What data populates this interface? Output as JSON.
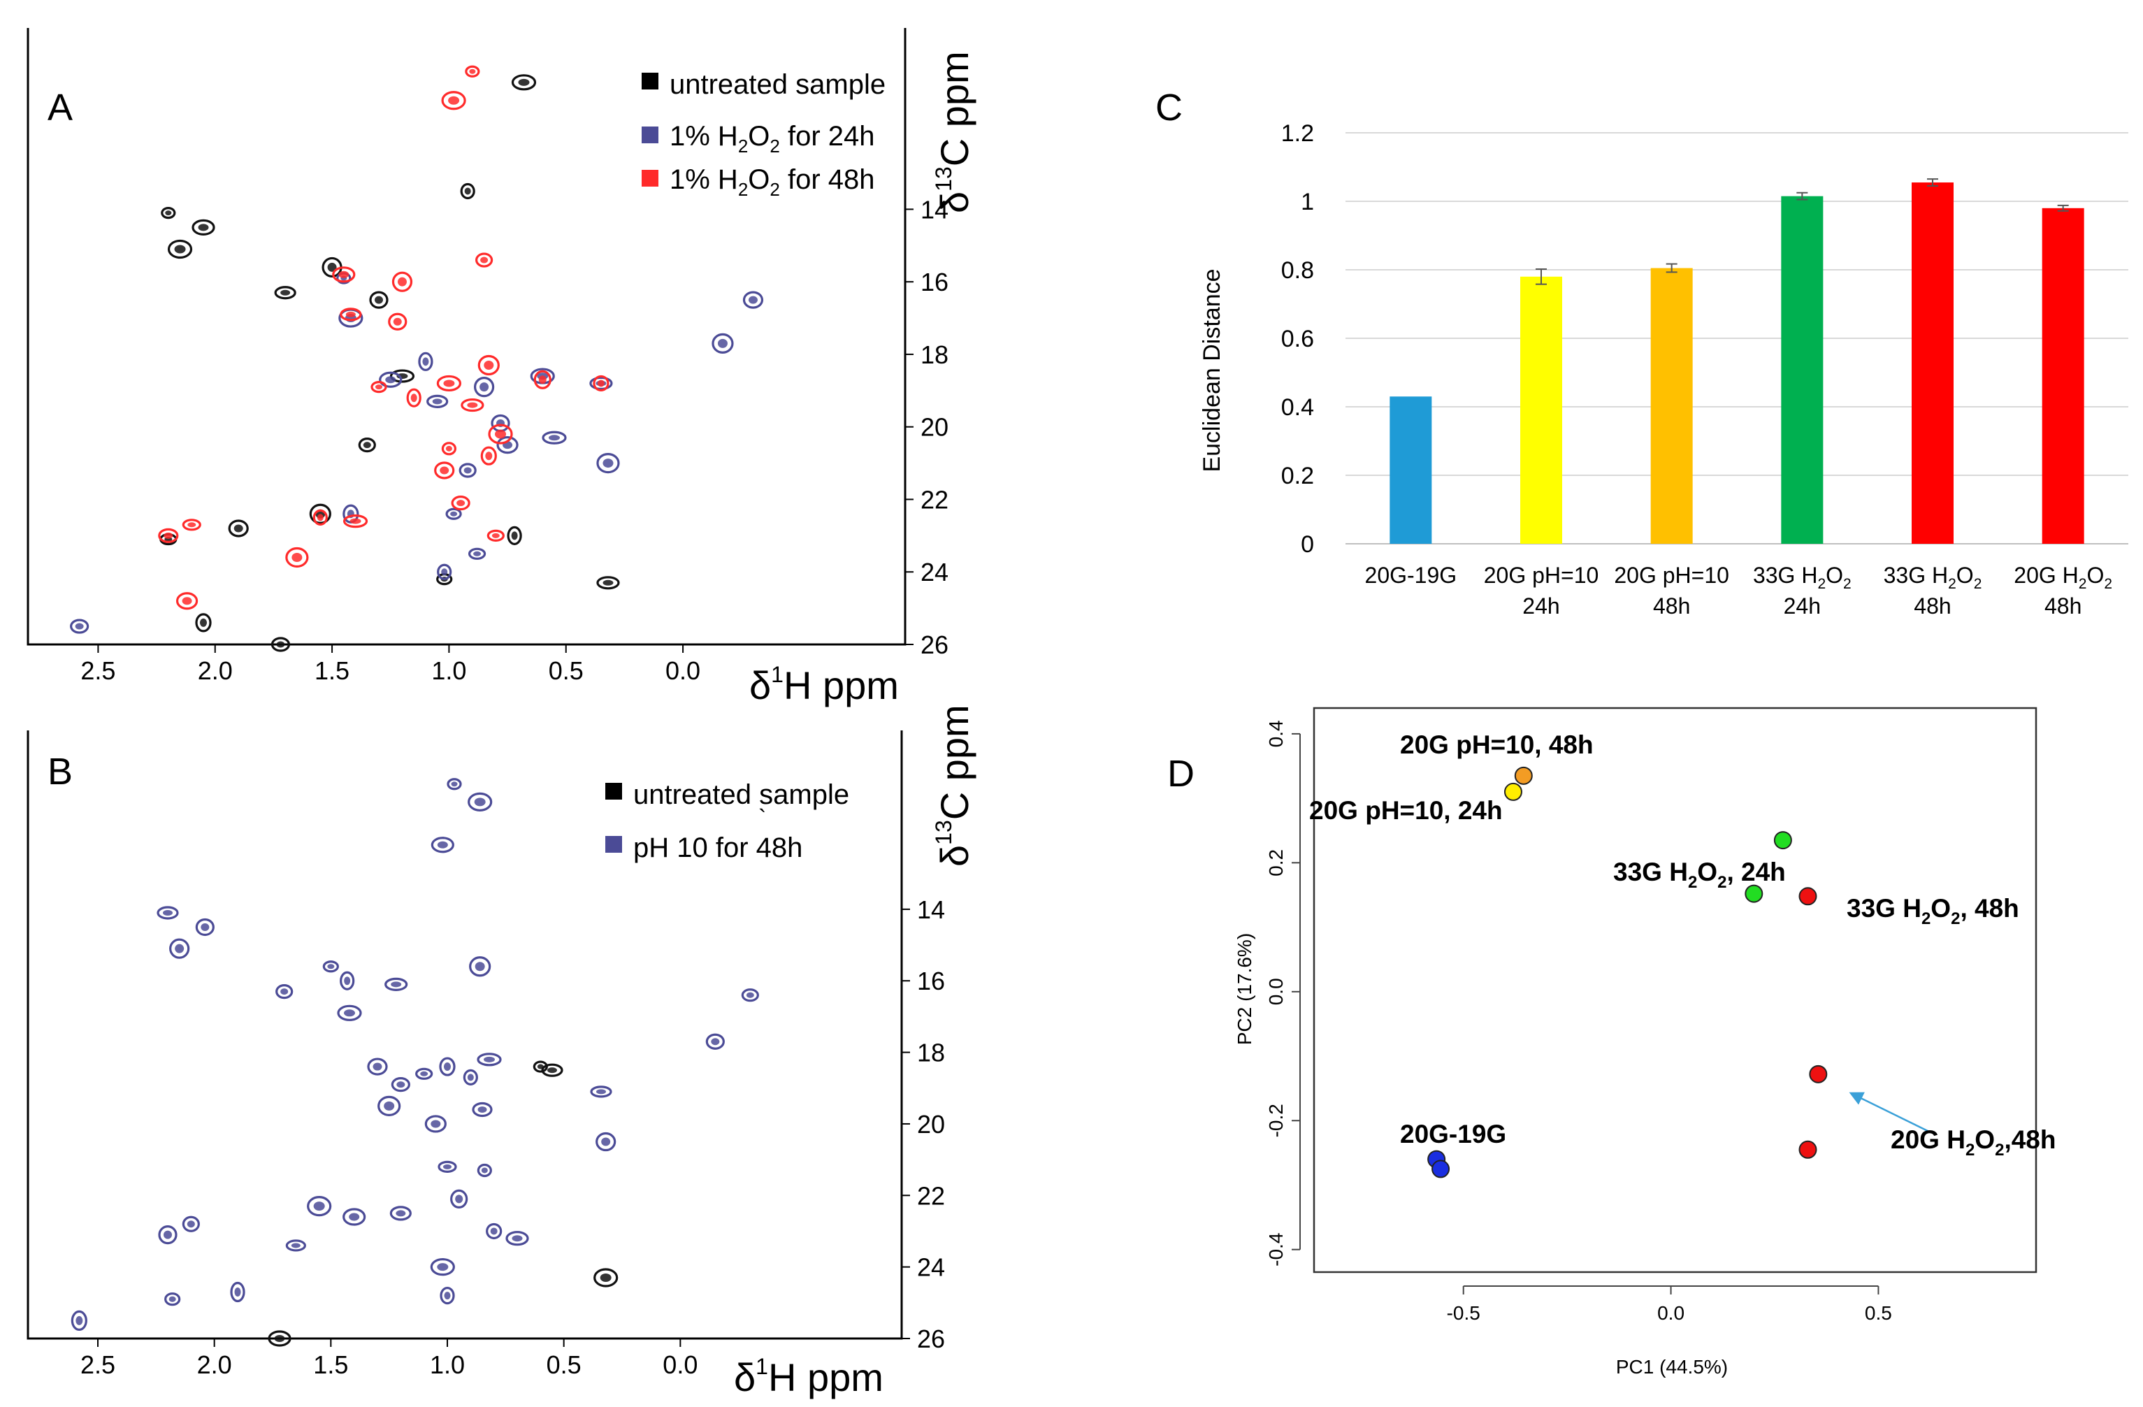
{
  "panels": {
    "A": {
      "label": "A",
      "legend": [
        {
          "pre": "untreated sample",
          "sub": "",
          "post": "",
          "color": "#000000"
        },
        {
          "pre": "1% H",
          "sub": "2",
          "mid": "O",
          "sub2": "2",
          "post": " for 24h",
          "color": "#4b4b96"
        },
        {
          "pre": "1% H",
          "sub": "2",
          "mid": "O",
          "sub2": "2",
          "post": " for 48h",
          "color": "#ff2a2a"
        }
      ],
      "x_label_delta": "δ",
      "x_label_sup": "1",
      "x_label_rest": "H ppm",
      "y_label_delta": "δ",
      "y_label_sup": "13",
      "y_label_rest": "C ppm",
      "x_ticks": [
        "2.5",
        "2.0",
        "1.5",
        "1.0",
        "0.5",
        "0.0"
      ],
      "y_ticks": [
        "14",
        "16",
        "18",
        "20",
        "22",
        "24",
        "26"
      ]
    },
    "B": {
      "label": "B",
      "legend": [
        {
          "text": "untreated sample",
          "color": "#000000"
        },
        {
          "text": "pH 10 for 48h",
          "color": "#4b4b96"
        }
      ],
      "stray_mark": "`",
      "x_label_delta": "δ",
      "x_label_sup": "1",
      "x_label_rest": "H ppm",
      "y_label_delta": "δ",
      "y_label_sup": "13",
      "y_label_rest": "C ppm",
      "x_ticks": [
        "2.5",
        "2.0",
        "1.5",
        "1.0",
        "0.5",
        "0.0"
      ],
      "y_ticks": [
        "14",
        "16",
        "18",
        "20",
        "22",
        "24",
        "26"
      ]
    },
    "C": {
      "label": "C"
    },
    "D": {
      "label": "D"
    }
  },
  "colors": {
    "nmr_black": "#111111",
    "nmr_blue": "#4b4b96",
    "nmr_red": "#ff2a2a"
  },
  "chart_data": [
    {
      "panel": "A",
      "type": "scatter",
      "title": "",
      "xlabel": "δ1H ppm",
      "ylabel": "δ13C ppm",
      "xlim": [
        2.8,
        -0.95
      ],
      "ylim": [
        26,
        9
      ],
      "series": [
        {
          "name": "untreated sample",
          "color": "#111111",
          "points": [
            [
              2.2,
              14.1
            ],
            [
              2.15,
              15.1
            ],
            [
              2.05,
              14.5
            ],
            [
              1.7,
              16.3
            ],
            [
              1.5,
              15.6
            ],
            [
              1.3,
              16.5
            ],
            [
              1.35,
              20.5
            ],
            [
              1.02,
              24.2
            ],
            [
              0.72,
              23.0
            ],
            [
              0.68,
              10.5
            ],
            [
              0.32,
              24.3
            ],
            [
              1.55,
              22.4
            ],
            [
              1.9,
              22.8
            ],
            [
              1.72,
              26.0
            ],
            [
              2.2,
              23.1
            ],
            [
              2.05,
              25.4
            ],
            [
              0.92,
              13.5
            ],
            [
              1.2,
              18.6
            ]
          ]
        },
        {
          "name": "1% H2O2 for 24h",
          "color": "#4b4b96",
          "points": [
            [
              1.45,
              15.9
            ],
            [
              1.42,
              17.0
            ],
            [
              1.25,
              18.7
            ],
            [
              1.05,
              19.3
            ],
            [
              0.85,
              18.9
            ],
            [
              0.78,
              19.9
            ],
            [
              0.92,
              21.2
            ],
            [
              0.98,
              22.4
            ],
            [
              1.1,
              18.2
            ],
            [
              0.6,
              18.6
            ],
            [
              0.35,
              18.8
            ],
            [
              -0.17,
              17.7
            ],
            [
              -0.3,
              16.5
            ],
            [
              2.58,
              25.5
            ],
            [
              0.88,
              23.5
            ],
            [
              1.42,
              22.4
            ],
            [
              1.02,
              24.0
            ],
            [
              0.55,
              20.3
            ],
            [
              0.32,
              21.0
            ],
            [
              0.75,
              20.5
            ]
          ]
        },
        {
          "name": "1% H2O2 for 48h",
          "color": "#ff2a2a",
          "points": [
            [
              0.9,
              10.2
            ],
            [
              0.98,
              11.0
            ],
            [
              1.45,
              15.8
            ],
            [
              1.42,
              16.9
            ],
            [
              1.2,
              16.0
            ],
            [
              1.22,
              17.1
            ],
            [
              0.85,
              15.4
            ],
            [
              1.3,
              18.9
            ],
            [
              1.15,
              19.2
            ],
            [
              1.0,
              18.8
            ],
            [
              0.9,
              19.4
            ],
            [
              0.83,
              18.3
            ],
            [
              1.02,
              21.2
            ],
            [
              0.95,
              22.1
            ],
            [
              0.8,
              23.0
            ],
            [
              0.83,
              20.8
            ],
            [
              1.55,
              22.5
            ],
            [
              1.4,
              22.6
            ],
            [
              1.65,
              23.6
            ],
            [
              2.12,
              24.8
            ],
            [
              2.2,
              23.0
            ],
            [
              2.1,
              22.7
            ],
            [
              0.6,
              18.7
            ],
            [
              0.35,
              18.8
            ],
            [
              1.0,
              20.6
            ],
            [
              0.78,
              20.2
            ]
          ]
        }
      ]
    },
    {
      "panel": "B",
      "type": "scatter",
      "title": "",
      "xlabel": "δ1H ppm",
      "ylabel": "δ13C ppm",
      "xlim": [
        2.8,
        -0.95
      ],
      "ylim": [
        26,
        9
      ],
      "series": [
        {
          "name": "untreated sample",
          "color": "#111111",
          "points": [
            [
              0.6,
              18.4
            ],
            [
              0.32,
              24.3
            ],
            [
              1.72,
              26.0
            ],
            [
              0.55,
              18.5
            ]
          ]
        },
        {
          "name": "pH 10 for 48h",
          "color": "#4b4b96",
          "points": [
            [
              0.97,
              10.5
            ],
            [
              0.86,
              11.0
            ],
            [
              1.02,
              12.2
            ],
            [
              2.2,
              14.1
            ],
            [
              2.15,
              15.1
            ],
            [
              2.04,
              14.5
            ],
            [
              1.7,
              16.3
            ],
            [
              1.5,
              15.6
            ],
            [
              1.43,
              16.0
            ],
            [
              1.42,
              16.9
            ],
            [
              1.22,
              16.1
            ],
            [
              0.86,
              15.6
            ],
            [
              1.3,
              18.4
            ],
            [
              1.2,
              18.9
            ],
            [
              1.1,
              18.6
            ],
            [
              1.0,
              18.4
            ],
            [
              0.9,
              18.7
            ],
            [
              0.82,
              18.2
            ],
            [
              1.25,
              19.5
            ],
            [
              1.05,
              20.0
            ],
            [
              0.85,
              19.6
            ],
            [
              1.0,
              21.2
            ],
            [
              0.95,
              22.1
            ],
            [
              0.8,
              23.0
            ],
            [
              0.84,
              21.3
            ],
            [
              1.55,
              22.3
            ],
            [
              1.4,
              22.6
            ],
            [
              1.2,
              22.5
            ],
            [
              1.65,
              23.4
            ],
            [
              2.2,
              23.1
            ],
            [
              2.1,
              22.8
            ],
            [
              2.18,
              24.9
            ],
            [
              1.9,
              24.7
            ],
            [
              1.02,
              24.0
            ],
            [
              0.7,
              23.2
            ],
            [
              0.34,
              19.1
            ],
            [
              0.32,
              20.5
            ],
            [
              -0.15,
              17.7
            ],
            [
              -0.3,
              16.4
            ],
            [
              2.58,
              25.5
            ],
            [
              1.0,
              24.8
            ]
          ]
        }
      ]
    },
    {
      "panel": "C",
      "type": "bar",
      "title": "",
      "xlabel": "",
      "ylabel": "Euclidean Distance",
      "ylim": [
        0,
        1.2
      ],
      "yticks": [
        "0",
        "0.2",
        "0.4",
        "0.6",
        "0.8",
        "1",
        "1.2"
      ],
      "yticks_values": [
        0,
        0.2,
        0.4,
        0.6,
        0.8,
        1.0,
        1.2
      ],
      "grid": true,
      "categories": [
        {
          "line1": "20G-19G",
          "line2": "",
          "sub": ""
        },
        {
          "line1": "20G pH=10",
          "line2": "24h",
          "sub": ""
        },
        {
          "line1": "20G pH=10",
          "line2": "48h",
          "sub": ""
        },
        {
          "line1": "33G H",
          "sub": "2",
          "mid": "O",
          "sub2": "2",
          "line2": "24h"
        },
        {
          "line1": "33G H",
          "sub": "2",
          "mid": "O",
          "sub2": "2",
          "line2": "48h"
        },
        {
          "line1": "20G H",
          "sub": "2",
          "mid": "O",
          "sub2": "2",
          "line2": "48h"
        }
      ],
      "values": [
        0.43,
        0.78,
        0.805,
        1.015,
        1.055,
        0.98
      ],
      "errors": [
        0,
        0.022,
        0.012,
        0.01,
        0.01,
        0.008
      ],
      "colors": [
        "#1f9bd6",
        "#ffff00",
        "#ffc000",
        "#00b050",
        "#ff0000",
        "#ff0000"
      ]
    },
    {
      "panel": "D",
      "type": "scatter",
      "title": "",
      "xlabel": "PC1 (44.5%)",
      "ylabel": "PC2 (17.6%)",
      "xlim": [
        -0.86,
        0.88
      ],
      "ylim": [
        -0.435,
        0.44
      ],
      "xticks": [
        "-0.5",
        "0.0",
        "0.5"
      ],
      "xticks_values": [
        -0.5,
        0.0,
        0.5
      ],
      "yticks": [
        "-0.4",
        "-0.2",
        "0.0",
        "0.2",
        "0.4"
      ],
      "yticks_values": [
        -0.4,
        -0.2,
        0.0,
        0.2,
        0.4
      ],
      "points": [
        {
          "group": "20G pH=10, 48h",
          "x": -0.355,
          "y": 0.335,
          "color": "#f39c24"
        },
        {
          "group": "20G pH=10, 24h",
          "x": -0.38,
          "y": 0.31,
          "color": "#ffee00"
        },
        {
          "group": "33G H2O2, 24h",
          "x": 0.27,
          "y": 0.235,
          "color": "#22dd22"
        },
        {
          "group": "33G H2O2, 24h",
          "x": 0.2,
          "y": 0.152,
          "color": "#22dd22"
        },
        {
          "group": "33G H2O2, 48h",
          "x": 0.33,
          "y": 0.148,
          "color": "#ee1111"
        },
        {
          "group": "20G H2O2, 48h",
          "x": 0.355,
          "y": -0.128,
          "color": "#ee1111"
        },
        {
          "group": "20G H2O2, 48h",
          "x": 0.33,
          "y": -0.245,
          "color": "#ee1111"
        },
        {
          "group": "20G-19G",
          "x": -0.565,
          "y": -0.26,
          "color": "#1a2ee0"
        },
        {
          "group": "20G-19G",
          "x": -0.555,
          "y": -0.275,
          "color": "#1a2ee0"
        }
      ],
      "annotations": [
        {
          "pre": "20G pH=10, 48h"
        },
        {
          "pre": "20G pH=10, 24h"
        },
        {
          "pre": "33G H",
          "sub": "2",
          "mid": "O",
          "sub2": "2",
          "post": ", 24h"
        },
        {
          "pre": "33G H",
          "sub": "2",
          "mid": "O",
          "sub2": "2",
          "post": ", 48h"
        },
        {
          "pre": "20G H",
          "sub": "2",
          "mid": "O",
          "sub2": "2",
          "post": ",48h"
        },
        {
          "pre": "20G-19G"
        }
      ],
      "arrow_color": "#3aa0d8"
    }
  ]
}
